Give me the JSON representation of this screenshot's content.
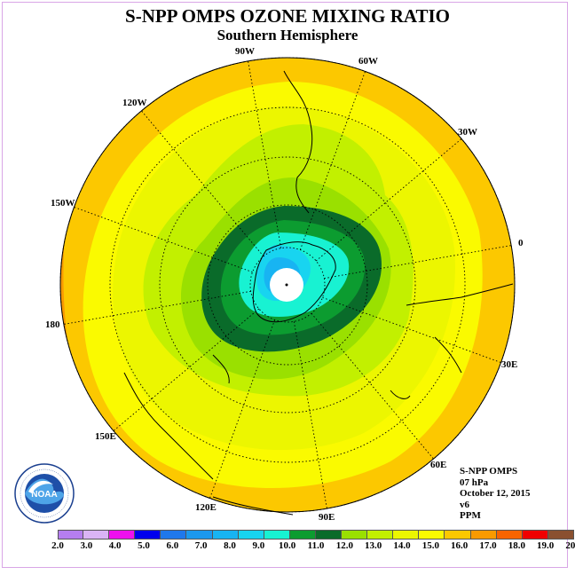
{
  "title": "S-NPP OMPS OZONE MIXING RATIO",
  "subtitle": "Southern Hemisphere",
  "info": {
    "instrument": "S-NPP OMPS",
    "level": "07 hPa",
    "date": "October 12, 2015",
    "version": "v6",
    "units": "PPM"
  },
  "longitude_labels": [
    "90W",
    "60W",
    "30W",
    "0",
    "30E",
    "60E",
    "90E",
    "120E",
    "150E",
    "180",
    "150W",
    "120W"
  ],
  "legend": {
    "ticks": [
      "2.0",
      "3.0",
      "4.0",
      "5.0",
      "6.0",
      "7.0",
      "8.0",
      "9.0",
      "10.0",
      "11.0",
      "12.0",
      "13.0",
      "14.0",
      "15.0",
      "16.0",
      "17.0",
      "18.0",
      "19.0",
      "20.0"
    ],
    "colors": [
      "#b57ef0",
      "#dab4f5",
      "#ee10ee",
      "#0000ee",
      "#1f78ec",
      "#1c98ee",
      "#18b4f2",
      "#18d4f0",
      "#18f2d2",
      "#0c9c30",
      "#0a6b2a",
      "#9ae000",
      "#c2f000",
      "#ecf600",
      "#fafa00",
      "#fcc800",
      "#f99a00",
      "#f86400",
      "#f00000",
      "#8a5030"
    ]
  },
  "chart_data": {
    "type": "heatmap",
    "projection": "south polar stereographic",
    "title": "S-NPP OMPS OZONE MIXING RATIO",
    "subtitle": "Southern Hemisphere",
    "units": "PPM",
    "color_scale": {
      "min": 2.0,
      "max": 20.0,
      "step": 1.0
    },
    "levels_present": [
      {
        "range": "10.0-11.0",
        "region": "innermost ring around South Pole"
      },
      {
        "range": "11.0-12.0",
        "region": "ring around polar vortex"
      },
      {
        "range": "12.0-13.0",
        "region": "dark band surrounding vortex"
      },
      {
        "range": "13.0-14.0",
        "region": "mid-latitudes"
      },
      {
        "range": "14.0-15.0",
        "region": "mid-latitudes"
      },
      {
        "range": "15.0-16.0",
        "region": "lower mid-latitudes"
      },
      {
        "range": "16.0-17.0",
        "region": "near equator"
      },
      {
        "range": "17.0-18.0",
        "region": "edge toward equator"
      }
    ],
    "grid": true
  }
}
